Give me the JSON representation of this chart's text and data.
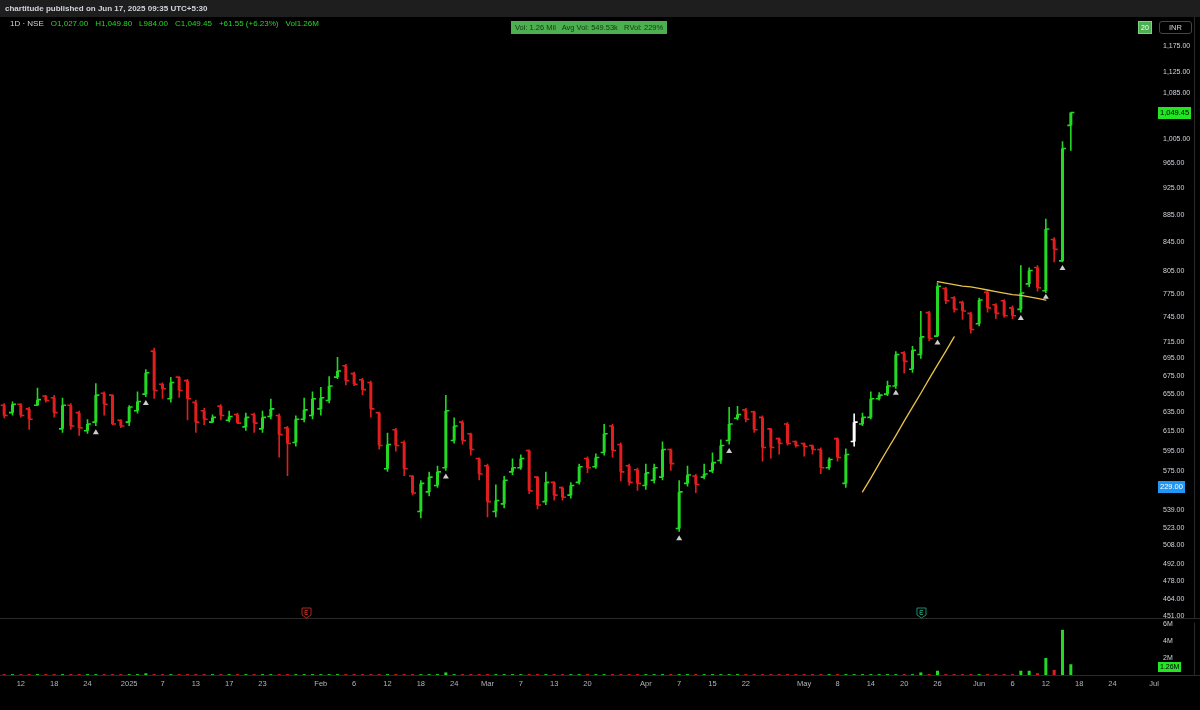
{
  "chart_data": [
    {
      "type": "candlestick",
      "title": "1D · NSE",
      "ylabel": "INR",
      "categories": [
        null,
        null,
        null,
        null,
        null,
        null,
        null,
        null,
        null,
        null,
        null,
        null,
        null,
        null,
        null,
        null,
        null,
        null,
        null,
        null,
        null,
        null,
        null,
        null,
        null,
        null,
        null,
        null,
        null,
        null,
        null,
        null,
        null,
        null,
        null,
        null,
        null,
        null,
        null,
        null,
        null,
        null,
        null,
        null,
        null,
        null,
        null,
        null,
        null,
        null,
        null,
        null,
        null,
        null,
        null,
        null,
        null,
        null,
        null,
        null,
        null,
        null,
        null,
        null,
        null,
        null,
        null,
        null,
        null,
        null,
        null,
        null,
        null,
        null,
        null,
        null,
        null,
        null,
        null,
        null,
        null,
        null,
        null,
        null,
        null,
        null,
        null,
        null,
        null,
        null,
        null,
        null,
        null,
        null,
        null,
        null,
        null,
        null,
        null,
        null,
        null,
        null,
        null,
        null,
        null,
        null,
        null,
        null,
        null,
        null,
        null,
        null,
        null,
        null,
        null,
        null,
        null,
        null,
        null,
        null,
        null,
        null,
        null,
        null,
        null,
        null,
        null,
        null,
        null,
        null,
        null,
        null,
        null,
        null,
        null,
        null,
        null,
        null,
        null,
        null,
        null,
        null,
        null,
        null
      ],
      "tick_labels": "y",
      "ohlc": [
        [
          642,
          644,
          628,
          631
        ],
        [
          634,
          646,
          631,
          643
        ],
        [
          643,
          644,
          629,
          631
        ],
        [
          638,
          640,
          616,
          627
        ],
        [
          642,
          661,
          641,
          648
        ],
        [
          652,
          653,
          645,
          647
        ],
        [
          650,
          653,
          629,
          634
        ],
        [
          617,
          650,
          613,
          642
        ],
        [
          642,
          644,
          616,
          620
        ],
        [
          634,
          636,
          610,
          618
        ],
        [
          615,
          627,
          612,
          622
        ],
        [
          624,
          666,
          620,
          653
        ],
        [
          655,
          657,
          631,
          643
        ],
        [
          653,
          654,
          621,
          622
        ],
        [
          626,
          627,
          618,
          620
        ],
        [
          624,
          642,
          620,
          640
        ],
        [
          636,
          657,
          633,
          646
        ],
        [
          654,
          682,
          651,
          678
        ],
        [
          703,
          707,
          649,
          658
        ],
        [
          665,
          667,
          649,
          660
        ],
        [
          649,
          673,
          645,
          667
        ],
        [
          673,
          674,
          650,
          658
        ],
        [
          669,
          671,
          626,
          649
        ],
        [
          645,
          648,
          613,
          624
        ],
        [
          636,
          639,
          621,
          627
        ],
        [
          624,
          632,
          623,
          629
        ],
        [
          641,
          643,
          626,
          631
        ],
        [
          626,
          636,
          624,
          630
        ],
        [
          632,
          634,
          622,
          623
        ],
        [
          619,
          634,
          615,
          629
        ],
        [
          632,
          634,
          613,
          623
        ],
        [
          617,
          636,
          613,
          629
        ],
        [
          630,
          649,
          627,
          638
        ],
        [
          631,
          633,
          588,
          611
        ],
        [
          618,
          620,
          570,
          602
        ],
        [
          603,
          631,
          599,
          627
        ],
        [
          627,
          650,
          624,
          637
        ],
        [
          631,
          657,
          627,
          649
        ],
        [
          638,
          662,
          631,
          650
        ],
        [
          647,
          674,
          644,
          663
        ],
        [
          673,
          696,
          671,
          680
        ],
        [
          686,
          688,
          664,
          669
        ],
        [
          677,
          679,
          663,
          665
        ],
        [
          670,
          672,
          653,
          659
        ],
        [
          667,
          669,
          629,
          638
        ],
        [
          634,
          635,
          596,
          600
        ],
        [
          577,
          613,
          574,
          601
        ],
        [
          616,
          618,
          594,
          600
        ],
        [
          603,
          605,
          570,
          577
        ],
        [
          570,
          571,
          552,
          554
        ],
        [
          537,
          566,
          531,
          563
        ],
        [
          555,
          574,
          551,
          569
        ],
        [
          561,
          580,
          559,
          574
        ],
        [
          578,
          653,
          575,
          636
        ],
        [
          605,
          629,
          602,
          620
        ],
        [
          624,
          626,
          601,
          605
        ],
        [
          612,
          613,
          590,
          596
        ],
        [
          587,
          588,
          566,
          572
        ],
        [
          580,
          582,
          532,
          546
        ],
        [
          537,
          562,
          532,
          547
        ],
        [
          544,
          570,
          540,
          566
        ],
        [
          574,
          587,
          571,
          578
        ],
        [
          578,
          591,
          576,
          587
        ],
        [
          595,
          596,
          553,
          556
        ],
        [
          569,
          570,
          539,
          543
        ],
        [
          546,
          574,
          543,
          564
        ],
        [
          564,
          565,
          547,
          552
        ],
        [
          559,
          560,
          547,
          550
        ],
        [
          552,
          564,
          549,
          561
        ],
        [
          564,
          582,
          562,
          579
        ],
        [
          587,
          589,
          573,
          578
        ],
        [
          579,
          592,
          577,
          588
        ],
        [
          593,
          622,
          590,
          612
        ],
        [
          620,
          622,
          588,
          595
        ],
        [
          601,
          603,
          565,
          574
        ],
        [
          580,
          582,
          561,
          564
        ],
        [
          576,
          578,
          556,
          563
        ],
        [
          561,
          582,
          557,
          573
        ],
        [
          566,
          582,
          563,
          578
        ],
        [
          569,
          604,
          566,
          596
        ],
        [
          596,
          597,
          575,
          582
        ],
        [
          522,
          566,
          519,
          555
        ],
        [
          563,
          580,
          560,
          571
        ],
        [
          570,
          572,
          554,
          562
        ],
        [
          569,
          582,
          567,
          572
        ],
        [
          575,
          593,
          573,
          583
        ],
        [
          585,
          606,
          582,
          600
        ],
        [
          605,
          640,
          601,
          622
        ],
        [
          628,
          641,
          626,
          632
        ],
        [
          637,
          639,
          624,
          627
        ],
        [
          635,
          636,
          613,
          616
        ],
        [
          629,
          631,
          584,
          598
        ],
        [
          617,
          618,
          587,
          598
        ],
        [
          607,
          608,
          591,
          602
        ],
        [
          622,
          624,
          600,
          602
        ],
        [
          604,
          605,
          598,
          600
        ],
        [
          602,
          603,
          589,
          599
        ],
        [
          600,
          601,
          591,
          596
        ],
        [
          596,
          598,
          572,
          578
        ],
        [
          578,
          588,
          576,
          586
        ],
        [
          607,
          608,
          584,
          588
        ],
        [
          563,
          597,
          559,
          591
        ],
        [
          604,
          633,
          599,
          624
        ],
        [
          622,
          634,
          620,
          629
        ],
        [
          629,
          657,
          627,
          649
        ],
        [
          649,
          656,
          647,
          653
        ],
        [
          654,
          669,
          652,
          663
        ],
        [
          663,
          703,
          660,
          699
        ],
        [
          701,
          703,
          677,
          691
        ],
        [
          682,
          709,
          678,
          704
        ],
        [
          699,
          752,
          694,
          720
        ],
        [
          750,
          752,
          715,
          718
        ],
        [
          721,
          789,
          720,
          784
        ],
        [
          781,
          783,
          761,
          765
        ],
        [
          769,
          771,
          750,
          754
        ],
        [
          763,
          765,
          741,
          752
        ],
        [
          749,
          751,
          724,
          729
        ],
        [
          736,
          769,
          733,
          766
        ],
        [
          776,
          778,
          750,
          756
        ],
        [
          760,
          762,
          742,
          749
        ],
        [
          765,
          767,
          744,
          746
        ],
        [
          756,
          759,
          742,
          746
        ],
        [
          754,
          812,
          750,
          775
        ],
        [
          787,
          809,
          783,
          805
        ],
        [
          809,
          812,
          777,
          782
        ],
        [
          778,
          878,
          775,
          863
        ],
        [
          848,
          851,
          816,
          834
        ],
        [
          818,
          1000,
          816,
          987.9
        ],
        [
          1027,
          1049.8,
          984,
          1049.45
        ],
        null,
        null,
        null,
        null,
        null,
        null,
        null,
        null,
        null,
        null,
        null,
        null,
        null,
        null,
        null
      ],
      "colors": [
        "#e01e1e",
        "#23d923",
        "#e01e1e",
        "#e01e1e",
        "#23d923",
        "#e01e1e",
        "#e01e1e",
        "#23d923",
        "#e01e1e",
        "#e01e1e",
        "#23d923",
        "#23d923",
        "#e01e1e",
        "#e01e1e",
        "#e01e1e",
        "#23d923",
        "#23d923",
        "#23d923",
        "#e01e1e",
        "#e01e1e",
        "#23d923",
        "#e01e1e",
        "#e01e1e",
        "#e01e1e",
        "#e01e1e",
        "#23d923",
        "#e01e1e",
        "#23d923",
        "#e01e1e",
        "#23d923",
        "#e01e1e",
        "#23d923",
        "#23d923",
        "#e01e1e",
        "#e01e1e",
        "#23d923",
        "#23d923",
        "#23d923",
        "#23d923",
        "#23d923",
        "#23d923",
        "#e01e1e",
        "#e01e1e",
        "#e01e1e",
        "#e01e1e",
        "#e01e1e",
        "#23d923",
        "#e01e1e",
        "#e01e1e",
        "#e01e1e",
        "#23d923",
        "#23d923",
        "#23d923",
        "#23d923",
        "#23d923",
        "#e01e1e",
        "#e01e1e",
        "#e01e1e",
        "#e01e1e",
        "#23d923",
        "#23d923",
        "#23d923",
        "#23d923",
        "#e01e1e",
        "#e01e1e",
        "#23d923",
        "#e01e1e",
        "#e01e1e",
        "#23d923",
        "#23d923",
        "#e01e1e",
        "#23d923",
        "#23d923",
        "#e01e1e",
        "#e01e1e",
        "#e01e1e",
        "#e01e1e",
        "#23d923",
        "#23d923",
        "#23d923",
        "#e01e1e",
        "#23d923",
        "#23d923",
        "#e01e1e",
        "#23d923",
        "#23d923",
        "#23d923",
        "#23d923",
        "#23d923",
        "#e01e1e",
        "#e01e1e",
        "#e01e1e",
        "#e01e1e",
        "#e01e1e",
        "#e01e1e",
        "#e01e1e",
        "#e01e1e",
        "#e01e1e",
        "#e01e1e",
        "#23d923",
        "#e01e1e",
        "#23d923",
        "#ffffff",
        "#23d923",
        "#23d923",
        "#23d923",
        "#23d923",
        "#23d923",
        "#e01e1e",
        "#23d923",
        "#23d923",
        "#e01e1e",
        "#23d923",
        "#e01e1e",
        "#e01e1e",
        "#e01e1e",
        "#e01e1e",
        "#23d923",
        "#e01e1e",
        "#e01e1e",
        "#e01e1e",
        "#e01e1e",
        "#23d923",
        "#23d923",
        "#e01e1e",
        "#23d923",
        "#e01e1e",
        "#23d923",
        "#23d923",
        null,
        null,
        null,
        null,
        null,
        null,
        null,
        null,
        null,
        null,
        null,
        null,
        null,
        null,
        null
      ],
      "series": [
        {
          "type": "scatter",
          "color": "#ffffff",
          "marker": "triangle",
          "values": [
            null,
            null,
            null,
            null,
            null,
            null,
            null,
            null,
            null,
            null,
            null,
            614,
            null,
            null,
            null,
            null,
            null,
            645,
            null,
            null,
            null,
            null,
            null,
            null,
            null,
            null,
            null,
            null,
            null,
            null,
            null,
            null,
            null,
            null,
            null,
            null,
            null,
            null,
            null,
            null,
            null,
            null,
            null,
            null,
            null,
            null,
            null,
            null,
            null,
            null,
            null,
            null,
            null,
            570,
            null,
            null,
            null,
            null,
            null,
            null,
            null,
            null,
            null,
            null,
            null,
            null,
            null,
            null,
            null,
            null,
            null,
            null,
            null,
            null,
            null,
            null,
            null,
            null,
            null,
            null,
            null,
            514,
            null,
            null,
            null,
            null,
            null,
            595,
            null,
            null,
            null,
            null,
            null,
            null,
            null,
            null,
            null,
            null,
            null,
            null,
            null,
            null,
            null,
            null,
            null,
            null,
            null,
            656,
            null,
            null,
            null,
            null,
            714,
            null,
            null,
            null,
            null,
            null,
            null,
            null,
            null,
            null,
            744,
            null,
            null,
            771,
            null,
            809,
            null,
            null,
            null,
            null,
            null,
            null,
            null,
            null,
            null,
            null,
            null,
            null,
            null,
            null,
            null,
            null
          ]
        },
        {
          "type": "line",
          "color": "#e8c547",
          "values": [
            null,
            null,
            null,
            null,
            null,
            null,
            null,
            null,
            null,
            null,
            null,
            null,
            null,
            null,
            null,
            null,
            null,
            null,
            null,
            null,
            null,
            null,
            null,
            null,
            null,
            null,
            null,
            null,
            null,
            null,
            null,
            null,
            null,
            null,
            null,
            null,
            null,
            null,
            null,
            null,
            null,
            null,
            null,
            null,
            null,
            null,
            null,
            null,
            null,
            null,
            null,
            null,
            null,
            null,
            null,
            null,
            null,
            null,
            null,
            null,
            null,
            null,
            null,
            null,
            null,
            null,
            null,
            null,
            null,
            null,
            null,
            null,
            null,
            null,
            null,
            null,
            null,
            null,
            null,
            null,
            null,
            null,
            null,
            null,
            null,
            null,
            null,
            null,
            null,
            null,
            null,
            null,
            null,
            null,
            null,
            null,
            null,
            null,
            null,
            null,
            null,
            null,
            null,
            555,
            568,
            582,
            596,
            610,
            625,
            640,
            655,
            671,
            687,
            703,
            720,
            null,
            null,
            null,
            null,
            null,
            null,
            null,
            null,
            null,
            null,
            null,
            null,
            null,
            null,
            null,
            null,
            null,
            null,
            null,
            null,
            null,
            null,
            null,
            null,
            null,
            null,
            null,
            null,
            null
          ]
        },
        {
          "type": "line",
          "color": "#e8c547",
          "values": [
            null,
            null,
            null,
            null,
            null,
            null,
            null,
            null,
            null,
            null,
            null,
            null,
            null,
            null,
            null,
            null,
            null,
            null,
            null,
            null,
            null,
            null,
            null,
            null,
            null,
            null,
            null,
            null,
            null,
            null,
            null,
            null,
            null,
            null,
            null,
            null,
            null,
            null,
            null,
            null,
            null,
            null,
            null,
            null,
            null,
            null,
            null,
            null,
            null,
            null,
            null,
            null,
            null,
            null,
            null,
            null,
            null,
            null,
            null,
            null,
            null,
            null,
            null,
            null,
            null,
            null,
            null,
            null,
            null,
            null,
            null,
            null,
            null,
            null,
            null,
            null,
            null,
            null,
            null,
            null,
            null,
            null,
            null,
            null,
            null,
            null,
            null,
            null,
            null,
            null,
            null,
            null,
            null,
            null,
            null,
            null,
            null,
            null,
            null,
            null,
            null,
            null,
            null,
            null,
            null,
            null,
            null,
            null,
            null,
            null,
            null,
            null,
            790,
            788,
            786,
            784,
            783,
            781,
            779,
            777,
            775,
            773,
            772,
            770,
            768,
            766,
            null,
            null,
            null,
            null,
            null,
            null,
            null,
            null,
            null,
            null,
            null,
            null,
            null,
            null,
            null,
            null,
            null,
            null
          ]
        }
      ],
      "ylim": [
        449,
        1232
      ],
      "yticks": [
        {
          "value": 1175,
          "label": "1,175.00"
        },
        {
          "value": 1125,
          "label": "1,125.00"
        },
        {
          "value": 1085,
          "label": "1,085.00"
        },
        {
          "value": 1005,
          "label": "1,005.00"
        },
        {
          "value": 965,
          "label": "965.00"
        },
        {
          "value": 925,
          "label": "925.00"
        },
        {
          "value": 885,
          "label": "885.00"
        },
        {
          "value": 845,
          "label": "845.00"
        },
        {
          "value": 805,
          "label": "805.00"
        },
        {
          "value": 775,
          "label": "775.00"
        },
        {
          "value": 745,
          "label": "745.00"
        },
        {
          "value": 715,
          "label": "715.00"
        },
        {
          "value": 695,
          "label": "695.00"
        },
        {
          "value": 675,
          "label": "675.00"
        },
        {
          "value": 655,
          "label": "655.00"
        },
        {
          "value": 635,
          "label": "635.00"
        },
        {
          "value": 615,
          "label": "615.00"
        },
        {
          "value": 595,
          "label": "595.00"
        },
        {
          "value": 575,
          "label": "575.00"
        },
        {
          "value": 539,
          "label": "539.00"
        },
        {
          "value": 523,
          "label": "523.00"
        },
        {
          "value": 508,
          "label": "508.00"
        },
        {
          "value": 492,
          "label": "492.00"
        },
        {
          "value": 478,
          "label": "478.00"
        },
        {
          "value": 464,
          "label": "464.00"
        },
        {
          "value": 451,
          "label": "451.00"
        }
      ],
      "log": "y",
      "annotations": [
        "chartitude published on Jun 17, 2025 09:35 UTC+5:30",
        "O1,027.00",
        "H1,049.80",
        "L984.00",
        "C1,049.45",
        "+61.55 (+6.23%)",
        "Vol1.26M",
        "Vol: 1.26 Mil   Avg Vol: 549.53k   RVol: 229%",
        "20",
        {
          "text": "1,049.45",
          "y": 1049.45
        },
        "229.00"
      ]
    },
    {
      "type": "bar",
      "categories": [
        null,
        null,
        "12",
        null,
        null,
        null,
        "18",
        null,
        null,
        null,
        "24",
        null,
        null,
        null,
        null,
        "2025",
        null,
        null,
        null,
        "7",
        null,
        null,
        null,
        "13",
        null,
        null,
        null,
        "17",
        null,
        null,
        null,
        "23",
        null,
        null,
        null,
        null,
        null,
        null,
        "Feb",
        null,
        null,
        null,
        "6",
        null,
        null,
        null,
        "12",
        null,
        null,
        null,
        "18",
        null,
        null,
        null,
        "24",
        null,
        null,
        null,
        "Mar",
        null,
        null,
        null,
        "7",
        null,
        null,
        null,
        "13",
        null,
        null,
        null,
        "20",
        null,
        null,
        null,
        null,
        null,
        null,
        "Apr",
        null,
        null,
        null,
        "7",
        null,
        null,
        null,
        "15",
        null,
        null,
        null,
        "22",
        null,
        null,
        null,
        null,
        null,
        null,
        "May",
        null,
        null,
        null,
        "8",
        null,
        null,
        null,
        "14",
        null,
        null,
        null,
        "20",
        null,
        null,
        null,
        "26",
        null,
        null,
        null,
        null,
        "Jun",
        null,
        null,
        null,
        "6",
        null,
        null,
        null,
        "12",
        null,
        null,
        null,
        "18",
        null,
        null,
        null,
        "24",
        null,
        null,
        null,
        null,
        "Jul",
        null,
        null,
        null,
        null,
        null
      ],
      "values": [
        100000,
        100000,
        100000,
        100000,
        100000,
        100000,
        100000,
        100000,
        100000,
        100000,
        100000,
        100000,
        100000,
        100000,
        100000,
        100000,
        100000,
        200000,
        100000,
        100000,
        100000,
        100000,
        100000,
        100000,
        100000,
        100000,
        100000,
        100000,
        100000,
        100000,
        100000,
        100000,
        100000,
        100000,
        100000,
        100000,
        100000,
        100000,
        100000,
        100000,
        100000,
        100000,
        100000,
        100000,
        100000,
        100000,
        100000,
        100000,
        100000,
        100000,
        100000,
        100000,
        100000,
        300000,
        100000,
        100000,
        100000,
        100000,
        100000,
        100000,
        100000,
        100000,
        100000,
        100000,
        100000,
        100000,
        100000,
        100000,
        100000,
        100000,
        100000,
        100000,
        100000,
        100000,
        100000,
        100000,
        100000,
        100000,
        100000,
        100000,
        100000,
        100000,
        100000,
        100000,
        100000,
        100000,
        100000,
        100000,
        100000,
        100000,
        100000,
        100000,
        100000,
        100000,
        100000,
        100000,
        100000,
        100000,
        100000,
        100000,
        100000,
        100000,
        100000,
        100000,
        100000,
        100000,
        100000,
        100000,
        100000,
        100000,
        300000,
        100000,
        500000,
        100000,
        100000,
        100000,
        100000,
        100000,
        100000,
        100000,
        100000,
        100000,
        500000,
        500000,
        200000,
        2000000,
        600000,
        5300000,
        1260000,
        null,
        null,
        null,
        null,
        null,
        null,
        null,
        null,
        null,
        null,
        null,
        null,
        null,
        null,
        null
      ],
      "colors": [
        "#e01e1e",
        "#23d923",
        "#e01e1e",
        "#e01e1e",
        "#23d923",
        "#e01e1e",
        "#e01e1e",
        "#23d923",
        "#e01e1e",
        "#e01e1e",
        "#23d923",
        "#23d923",
        "#e01e1e",
        "#e01e1e",
        "#e01e1e",
        "#23d923",
        "#23d923",
        "#23d923",
        "#e01e1e",
        "#e01e1e",
        "#23d923",
        "#e01e1e",
        "#e01e1e",
        "#e01e1e",
        "#e01e1e",
        "#23d923",
        "#e01e1e",
        "#23d923",
        "#e01e1e",
        "#23d923",
        "#e01e1e",
        "#23d923",
        "#23d923",
        "#e01e1e",
        "#e01e1e",
        "#23d923",
        "#23d923",
        "#23d923",
        "#23d923",
        "#23d923",
        "#23d923",
        "#e01e1e",
        "#e01e1e",
        "#e01e1e",
        "#e01e1e",
        "#e01e1e",
        "#23d923",
        "#e01e1e",
        "#e01e1e",
        "#e01e1e",
        "#23d923",
        "#23d923",
        "#23d923",
        "#23d923",
        "#23d923",
        "#e01e1e",
        "#e01e1e",
        "#e01e1e",
        "#e01e1e",
        "#23d923",
        "#23d923",
        "#23d923",
        "#23d923",
        "#e01e1e",
        "#e01e1e",
        "#23d923",
        "#e01e1e",
        "#e01e1e",
        "#23d923",
        "#23d923",
        "#e01e1e",
        "#23d923",
        "#23d923",
        "#e01e1e",
        "#e01e1e",
        "#e01e1e",
        "#e01e1e",
        "#23d923",
        "#23d923",
        "#23d923",
        "#e01e1e",
        "#23d923",
        "#23d923",
        "#e01e1e",
        "#23d923",
        "#23d923",
        "#23d923",
        "#23d923",
        "#23d923",
        "#e01e1e",
        "#e01e1e",
        "#e01e1e",
        "#e01e1e",
        "#e01e1e",
        "#e01e1e",
        "#e01e1e",
        "#e01e1e",
        "#e01e1e",
        "#e01e1e",
        "#23d923",
        "#e01e1e",
        "#23d923",
        "#23d923",
        "#23d923",
        "#23d923",
        "#23d923",
        "#23d923",
        "#23d923",
        "#e01e1e",
        "#23d923",
        "#23d923",
        "#e01e1e",
        "#23d923",
        "#e01e1e",
        "#e01e1e",
        "#e01e1e",
        "#e01e1e",
        "#23d923",
        "#e01e1e",
        "#e01e1e",
        "#e01e1e",
        "#e01e1e",
        "#23d923",
        "#23d923",
        "#e01e1e",
        "#23d923",
        "#e01e1e",
        "#23d923",
        "#23d923",
        null,
        null,
        null,
        null,
        null,
        null,
        null,
        null,
        null,
        null,
        null,
        null,
        null,
        null,
        null
      ],
      "ylim": [
        0,
        6100000
      ],
      "yticks": [
        {
          "value": 2000000,
          "label": "2M"
        },
        {
          "value": 4000000,
          "label": "4M"
        },
        {
          "value": 6000000,
          "label": "6M"
        }
      ],
      "annotations": [
        "1.26M"
      ]
    }
  ]
}
